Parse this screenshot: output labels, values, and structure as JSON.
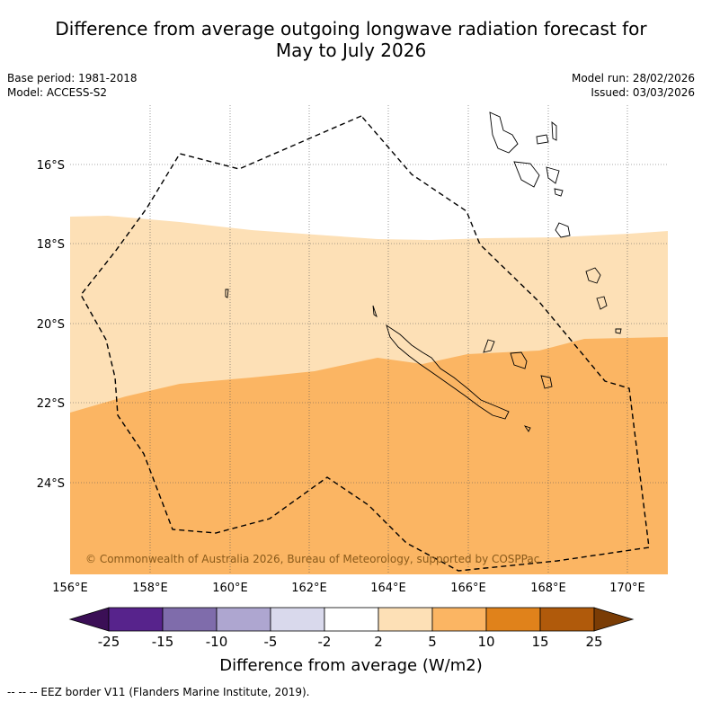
{
  "title_line1": "Difference from average outgoing longwave radiation forecast for",
  "title_line2": "May to July 2026",
  "base_period": "Base period: 1981-2018",
  "model": "Model: ACCESS-S2",
  "model_run": "Model run: 28/02/2026",
  "issued": "Issued: 03/03/2026",
  "lat_labels": [
    "16°S",
    "18°S",
    "20°S",
    "22°S",
    "24°S"
  ],
  "lon_labels": [
    "156°E",
    "158°E",
    "160°E",
    "162°E",
    "164°E",
    "166°E",
    "168°E",
    "170°E"
  ],
  "copyright": "© Commonwealth of Australia 2026, Bureau of Meteorology, supported by COSPPac",
  "colorbar": {
    "ticks": [
      "-25",
      "-15",
      "-10",
      "-5",
      "-2",
      "2",
      "5",
      "10",
      "15",
      "25"
    ],
    "colors": [
      "#3b0f56",
      "#57238c",
      "#7f6cab",
      "#aea6d0",
      "#d9d9ec",
      "#ffffff",
      "#fde0b6",
      "#fbb563",
      "#e0821b",
      "#b05a0b",
      "#7a3c05"
    ],
    "title": "Difference from average (W/m2)"
  },
  "legend_note": "-- -- -- EEZ border V11 (Flanders Marine Institute, 2019).",
  "map_colors": {
    "band_2_5": "#fde0b6",
    "band_5_10": "#fbb563"
  }
}
